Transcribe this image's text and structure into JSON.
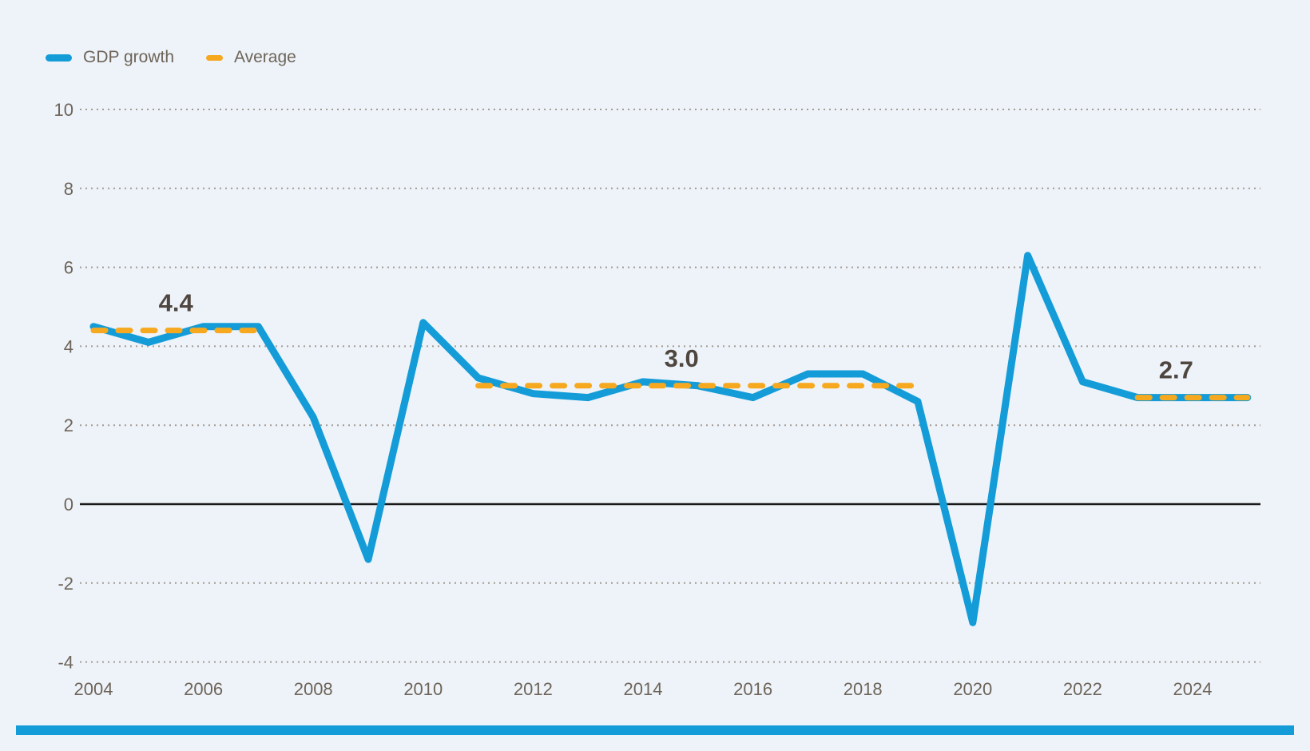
{
  "legend": {
    "items": [
      {
        "label": "GDP growth",
        "swatch": "solid-line"
      },
      {
        "label": "Average",
        "swatch": "dash"
      }
    ]
  },
  "chart_data": {
    "type": "line",
    "title": "",
    "xlabel": "",
    "ylabel": "",
    "x": [
      2004,
      2005,
      2006,
      2007,
      2008,
      2009,
      2010,
      2011,
      2012,
      2013,
      2014,
      2015,
      2016,
      2017,
      2018,
      2019,
      2020,
      2021,
      2022,
      2023,
      2024,
      2025
    ],
    "series": [
      {
        "name": "GDP growth",
        "values": [
          4.5,
          4.1,
          4.5,
          4.5,
          2.2,
          -1.4,
          4.6,
          3.2,
          2.8,
          2.7,
          3.1,
          3.0,
          2.7,
          3.3,
          3.3,
          2.6,
          -3.0,
          6.3,
          3.1,
          2.7,
          2.7,
          2.7
        ]
      }
    ],
    "average_segments": [
      {
        "label": "4.4",
        "value": 4.4,
        "from_year": 2004,
        "to_year": 2007,
        "label_year": 2005.5
      },
      {
        "label": "3.0",
        "value": 3.0,
        "from_year": 2011,
        "to_year": 2019,
        "label_year": 2014.7
      },
      {
        "label": "2.7",
        "value": 2.7,
        "from_year": 2023,
        "to_year": 2025,
        "label_year": 2023.7
      }
    ],
    "y_ticks": [
      10,
      8,
      6,
      4,
      2,
      0,
      -2,
      -4
    ],
    "x_ticks": [
      2004,
      2006,
      2008,
      2010,
      2012,
      2014,
      2016,
      2018,
      2020,
      2022,
      2024
    ],
    "ylim": [
      -4.7,
      10.9
    ],
    "xlim": [
      2004,
      2025
    ],
    "grid": "horizontal-dotted",
    "zero_line": true,
    "legend_position": "top-left"
  },
  "colors": {
    "background": "#EDF3F9",
    "series_blue": "#149CD8",
    "average_orange": "#F6A81F",
    "axis_text": "#6E6459",
    "annotation_text": "#4E463F",
    "gridline": "#A39B93",
    "zero_line": "#1A1A1A",
    "bottom_bar": "#149CD8"
  }
}
